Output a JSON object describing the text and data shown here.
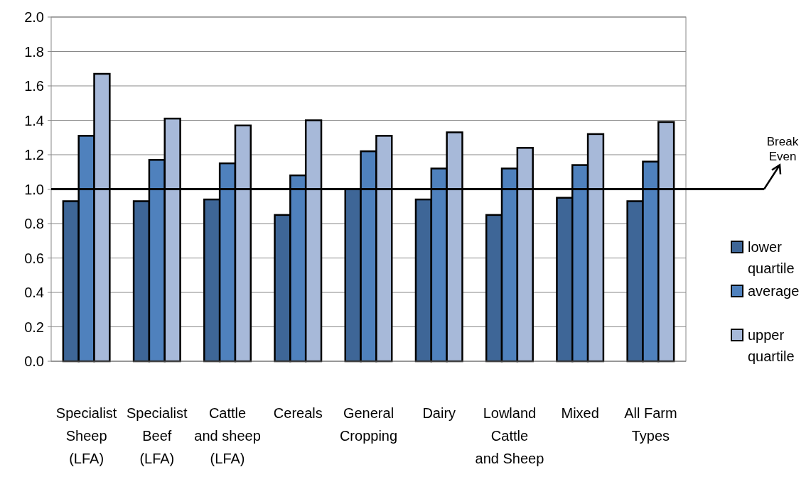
{
  "chart_data": {
    "type": "bar",
    "categories": [
      "Specialist Sheep (LFA)",
      "Specialist Beef (LFA)",
      "Cattle and sheep (LFA)",
      "Cereals",
      "General Cropping",
      "Dairy",
      "Lowland Cattle and Sheep",
      "Mixed",
      "All Farm Types"
    ],
    "series": [
      {
        "name": "lower quartile",
        "color": "#3e6697",
        "values": [
          0.93,
          0.93,
          0.94,
          0.85,
          1.0,
          0.94,
          0.85,
          0.95,
          0.93
        ]
      },
      {
        "name": "average",
        "color": "#4f81bd",
        "values": [
          1.31,
          1.17,
          1.15,
          1.08,
          1.22,
          1.12,
          1.12,
          1.14,
          1.16
        ]
      },
      {
        "name": "upper quartile",
        "color": "#a7b9d9",
        "values": [
          1.67,
          1.41,
          1.37,
          1.4,
          1.31,
          1.33,
          1.24,
          1.32,
          1.39
        ]
      }
    ],
    "ylim": [
      0,
      2
    ],
    "yticks": [
      {
        "value": 0,
        "label": "0.0"
      },
      {
        "value": 0.2,
        "label": "0.2"
      },
      {
        "value": 0.4,
        "label": "0.4"
      },
      {
        "value": 0.6,
        "label": "0.6"
      },
      {
        "value": 0.8,
        "label": "0.8"
      },
      {
        "value": 1,
        "label": "1.0"
      },
      {
        "value": 1.2,
        "label": "1.2"
      },
      {
        "value": 1.4,
        "label": "1.4"
      },
      {
        "value": 1.6,
        "label": "1.6"
      },
      {
        "value": 1.8,
        "label": "1.8"
      },
      {
        "value": 2,
        "label": "2.0"
      }
    ],
    "grid": "y",
    "legend": "right",
    "ref_lines": [
      {
        "axis": "y",
        "value": 1,
        "label": "Break Even",
        "color": "#000000"
      }
    ]
  }
}
